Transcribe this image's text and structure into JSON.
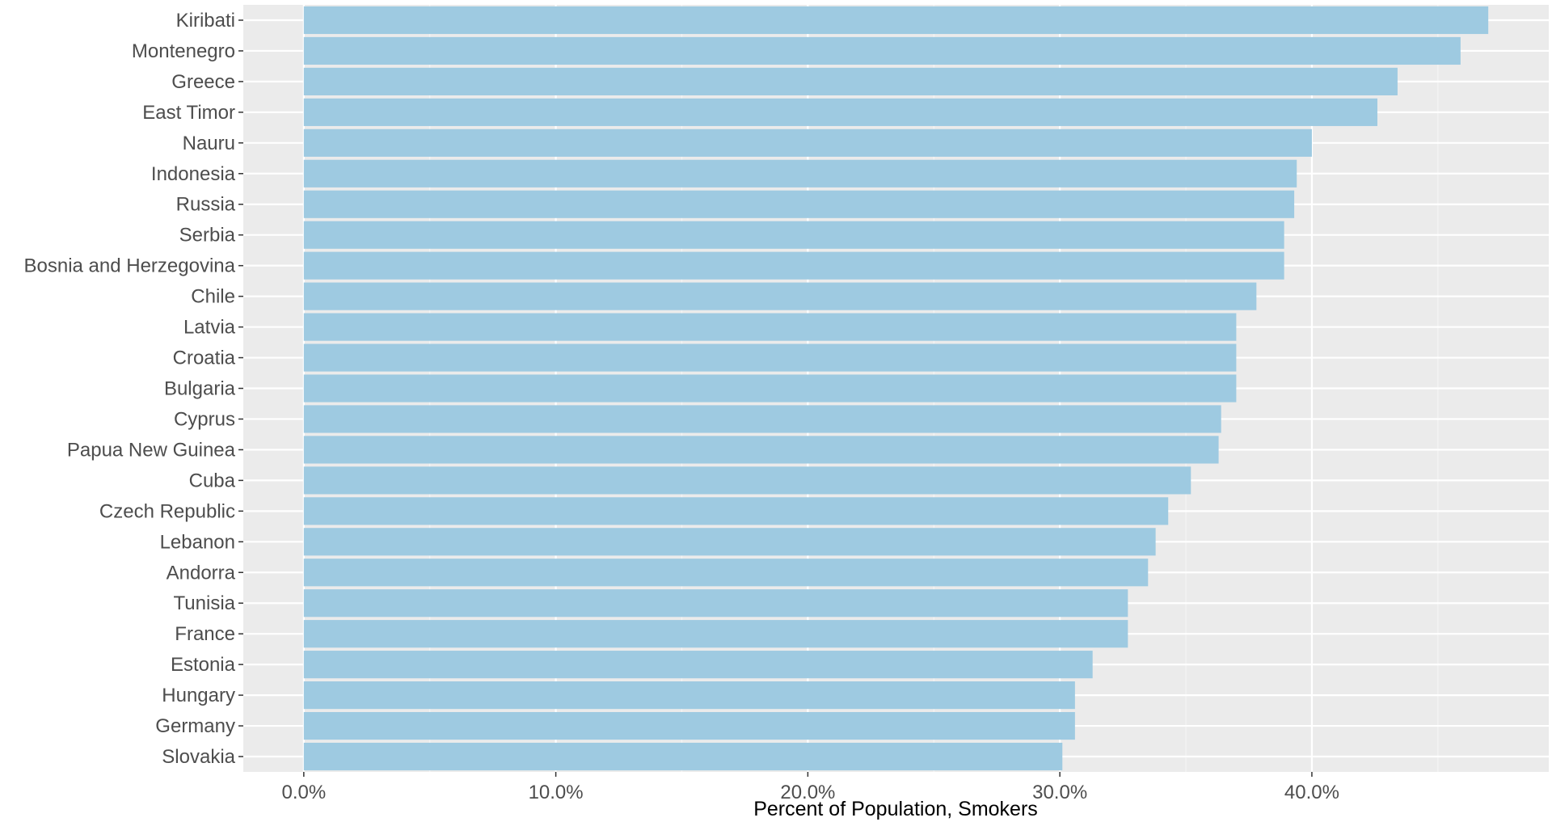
{
  "chart_data": {
    "type": "bar",
    "orientation": "horizontal",
    "title": "",
    "xlabel": "Percent of Population, Smokers",
    "ylabel": "",
    "categories": [
      "Kiribati",
      "Montenegro",
      "Greece",
      "East Timor",
      "Nauru",
      "Indonesia",
      "Russia",
      "Serbia",
      "Bosnia and Herzegovina",
      "Chile",
      "Latvia",
      "Croatia",
      "Bulgaria",
      "Cyprus",
      "Papua New Guinea",
      "Cuba",
      "Czech Republic",
      "Lebanon",
      "Andorra",
      "Tunisia",
      "France",
      "Estonia",
      "Hungary",
      "Germany",
      "Slovakia"
    ],
    "values": [
      47.0,
      45.9,
      43.4,
      42.6,
      40.0,
      39.4,
      39.3,
      38.9,
      38.9,
      37.8,
      37.0,
      37.0,
      37.0,
      36.4,
      36.3,
      35.2,
      34.3,
      33.8,
      33.5,
      32.7,
      32.7,
      31.3,
      30.6,
      30.6,
      30.1
    ],
    "xlim": [
      -2.4,
      49.4
    ],
    "x_ticks": [
      0,
      10,
      20,
      30,
      40
    ],
    "x_tick_labels": [
      "0.0%",
      "10.0%",
      "20.0%",
      "30.0%",
      "40.0%"
    ],
    "grid": true,
    "legend": "none",
    "colors": {
      "bar": "#9ecae1",
      "panel_background": "#ebebeb",
      "grid_major": "#ffffff",
      "grid_minor": "#f5f5f5",
      "tick_text": "#4d4d4d",
      "axis_title": "#000000"
    }
  }
}
